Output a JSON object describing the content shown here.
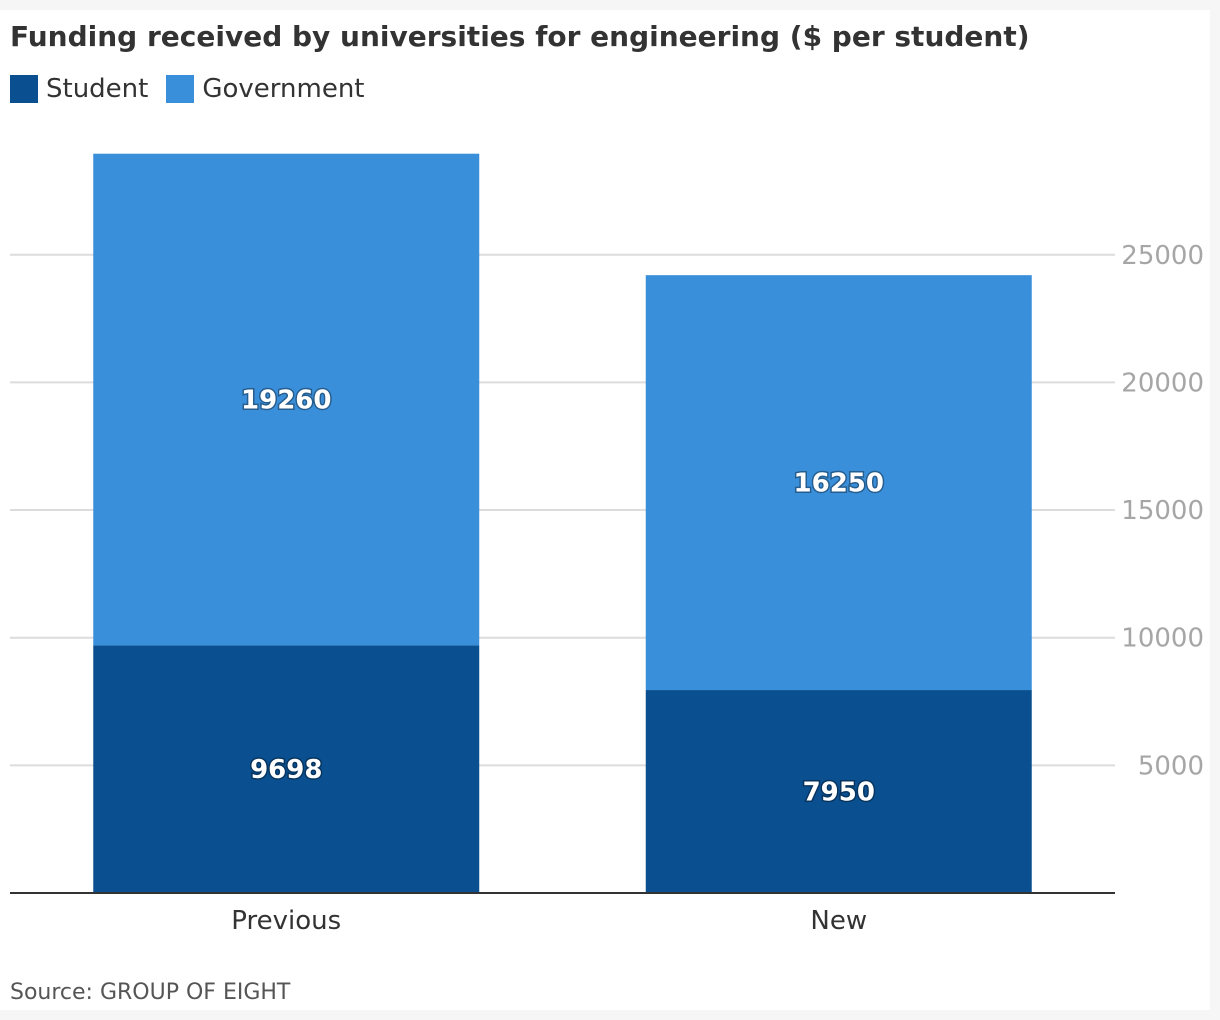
{
  "chart_data": {
    "type": "bar",
    "stacked": true,
    "title": "Funding received by universities for engineering ($ per student)",
    "categories": [
      "Previous",
      "New"
    ],
    "series": [
      {
        "name": "Student",
        "values": [
          9698,
          7950
        ],
        "color": "#0a5091"
      },
      {
        "name": "Government",
        "values": [
          19260,
          16250
        ],
        "color": "#3a8fda"
      }
    ],
    "yticks": [
      5000,
      10000,
      15000,
      20000,
      25000
    ],
    "ylim": [
      0,
      29000
    ],
    "y_axis_side": "right",
    "grid": true,
    "legend_position": "top-left",
    "source": "Source: GROUP OF EIGHT"
  }
}
